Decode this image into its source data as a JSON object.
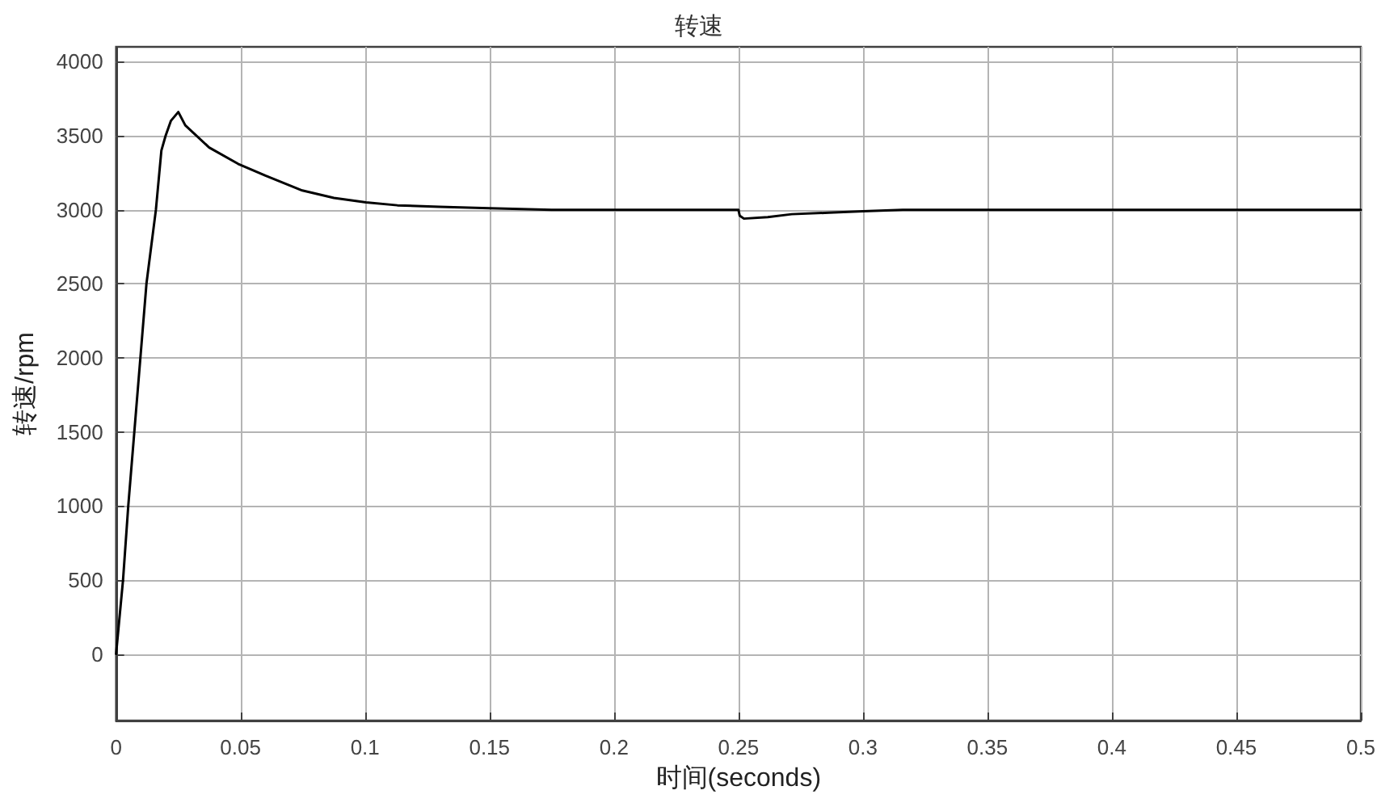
{
  "chart_data": {
    "type": "line",
    "title": "转速",
    "xlabel": "时间(seconds)",
    "ylabel": "转速/rpm",
    "x": [
      0,
      0.0028,
      0.0049,
      0.0122,
      0.016,
      0.0182,
      0.0199,
      0.022,
      0.025,
      0.0278,
      0.0374,
      0.049,
      0.06,
      0.0748,
      0.0875,
      0.1004,
      0.113,
      0.13,
      0.15,
      0.175,
      0.2,
      0.25,
      0.2505,
      0.2522,
      0.2618,
      0.2714,
      0.2864,
      0.3,
      0.316,
      0.35,
      0.4,
      0.5
    ],
    "series": [
      {
        "color": "#000000",
        "values": [
          0,
          500,
          1000,
          2500,
          3000,
          3400,
          3500,
          3600,
          3660,
          3570,
          3420,
          3310,
          3230,
          3130,
          3080,
          3050,
          3030,
          3020,
          3010,
          3000,
          3000,
          3000,
          2960,
          2940,
          2950,
          2970,
          2980,
          2990,
          3000,
          3000,
          3000,
          3000
        ]
      }
    ],
    "xlim": [
      0,
      0.5
    ],
    "ylim": [
      -450,
      4100
    ],
    "xticks": [
      0,
      0.05,
      0.1,
      0.15,
      0.2,
      0.25,
      0.3,
      0.35,
      0.4,
      0.45,
      0.5
    ],
    "yticks": [
      0,
      500,
      1000,
      1500,
      2000,
      2500,
      3000,
      3500,
      4000
    ],
    "grid": true,
    "marker": "none",
    "line_style": "solid"
  }
}
